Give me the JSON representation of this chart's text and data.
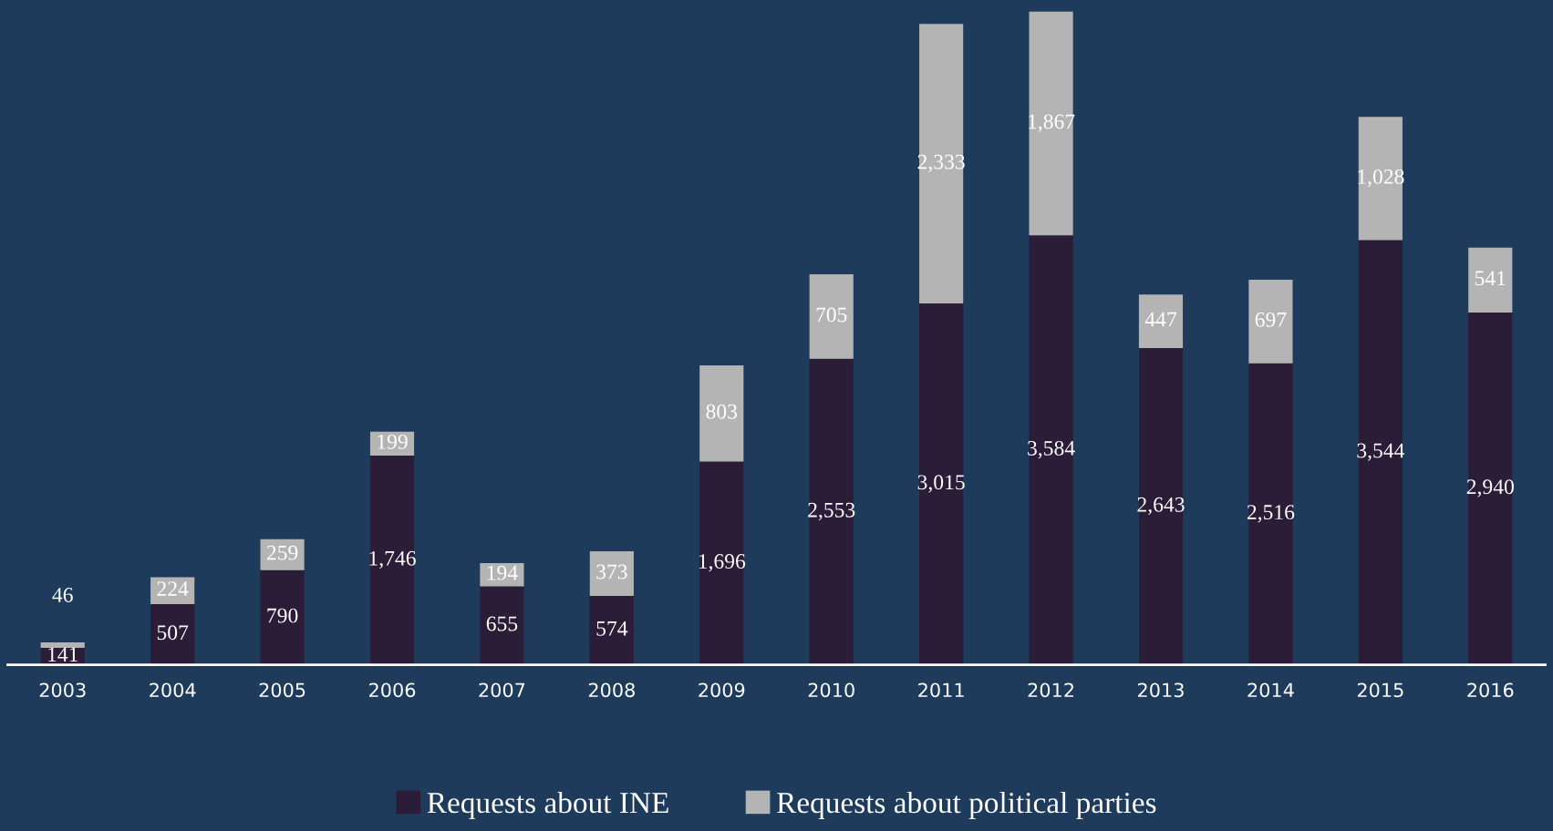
{
  "chart_data": {
    "type": "bar",
    "stacked": true,
    "legend": "bottom",
    "grid": false,
    "categories": [
      "2003",
      "2004",
      "2005",
      "2006",
      "2007",
      "2008",
      "2009",
      "2010",
      "2011",
      "2012",
      "2013",
      "2014",
      "2015",
      "2016"
    ],
    "series": [
      {
        "name": "Requests about INE",
        "color": "#2b1c38",
        "values": [
          141,
          507,
          790,
          1746,
          655,
          574,
          1696,
          2553,
          3015,
          3584,
          2643,
          2516,
          3544,
          2940
        ],
        "value_labels": [
          "141",
          "507",
          "790",
          "1,746",
          "655",
          "574",
          "1,696",
          "2,553",
          "3,015",
          "3,584",
          "2,643",
          "2,516",
          "3,544",
          "2,940"
        ]
      },
      {
        "name": "Requests about political parties",
        "color": "#b4b4b4",
        "values": [
          46,
          224,
          259,
          199,
          194,
          373,
          803,
          705,
          2333,
          1867,
          447,
          697,
          1028,
          541
        ],
        "value_labels": [
          "46",
          "224",
          "259",
          "199",
          "194",
          "373",
          "803",
          "705",
          "2,333",
          "1,867",
          "447",
          "697",
          "1,028",
          "541"
        ]
      }
    ]
  }
}
